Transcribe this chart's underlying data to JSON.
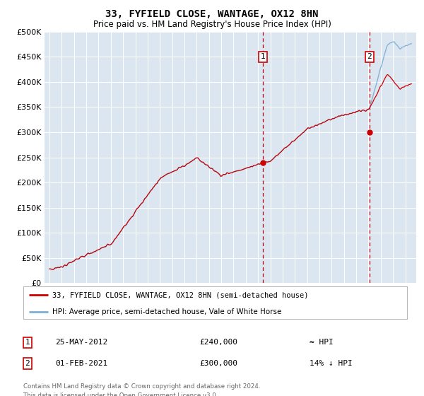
{
  "title": "33, FYFIELD CLOSE, WANTAGE, OX12 8HN",
  "subtitle": "Price paid vs. HM Land Registry's House Price Index (HPI)",
  "legend_line1": "33, FYFIELD CLOSE, WANTAGE, OX12 8HN (semi-detached house)",
  "legend_line2": "HPI: Average price, semi-detached house, Vale of White Horse",
  "annotation1_date": "25-MAY-2012",
  "annotation1_price": "£240,000",
  "annotation1_hpi": "≈ HPI",
  "annotation2_date": "01-FEB-2021",
  "annotation2_price": "£300,000",
  "annotation2_hpi": "14% ↓ HPI",
  "footer": "Contains HM Land Registry data © Crown copyright and database right 2024.\nThis data is licensed under the Open Government Licence v3.0.",
  "hpi_color": "#7bafd4",
  "price_color": "#cc0000",
  "background_color": "#dce6f1",
  "ylim": [
    0,
    500000
  ],
  "yticks": [
    0,
    50000,
    100000,
    150000,
    200000,
    250000,
    300000,
    350000,
    400000,
    450000,
    500000
  ],
  "sale1_year": 2012.38,
  "sale1_value": 240000,
  "sale2_year": 2021.08,
  "sale2_value": 300000
}
